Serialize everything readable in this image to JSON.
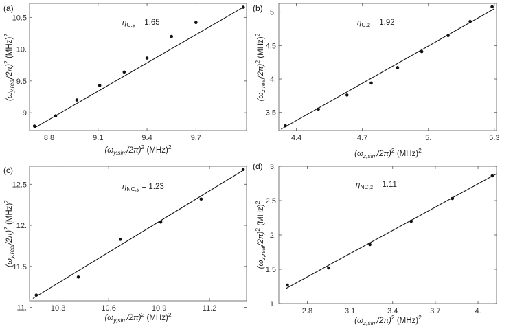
{
  "chart_data": [
    {
      "type": "scatter",
      "panel_label": "(a)",
      "annotation": "η_C,y = 1.65",
      "annotation_main": "η",
      "annotation_sub": "C,y",
      "annotation_value": " = 1.65",
      "xlabel_main": "(ω",
      "xlabel_sub": "y,sim",
      "xlabel_rest": "/2π)",
      "xlabel_sup": "2",
      "xlabel_units": " (MHz)",
      "xlabel_units_sup": "2",
      "ylabel_main": "(ω",
      "ylabel_sub": "y,real",
      "ylabel_rest": "/2π)",
      "ylabel_sup": "2",
      "ylabel_units": " (MHz)",
      "ylabel_units_sup": "2",
      "xlim": [
        8.68,
        10.01
      ],
      "ylim": [
        8.72,
        10.72
      ],
      "xticks": [
        8.8,
        9.1,
        9.4,
        9.7
      ],
      "xtick_labels": [
        "8.8",
        "9.1",
        "9.4",
        "9.7"
      ],
      "yticks": [
        9.0,
        9.5,
        10.0,
        10.5
      ],
      "ytick_labels": [
        "9",
        "9.5",
        "10.",
        "10.5"
      ],
      "points": [
        {
          "x": 8.71,
          "y": 8.79
        },
        {
          "x": 8.84,
          "y": 8.95
        },
        {
          "x": 8.97,
          "y": 9.2
        },
        {
          "x": 9.11,
          "y": 9.43
        },
        {
          "x": 9.26,
          "y": 9.64
        },
        {
          "x": 9.4,
          "y": 9.86
        },
        {
          "x": 9.55,
          "y": 10.2
        },
        {
          "x": 9.7,
          "y": 10.42
        },
        {
          "x": 9.99,
          "y": 10.66
        }
      ],
      "fit": {
        "x": [
          8.71,
          9.99
        ],
        "y": [
          8.76,
          10.66
        ]
      }
    },
    {
      "type": "scatter",
      "panel_label": "(b)",
      "annotation": "η_C,z = 1.92",
      "annotation_main": "η",
      "annotation_sub": "C,z",
      "annotation_value": " = 1.92",
      "xlabel_main": "(ω",
      "xlabel_sub": "z,sim",
      "xlabel_rest": "/2π)",
      "xlabel_sup": "2",
      "xlabel_units": " (MHz)",
      "xlabel_units_sup": "2",
      "ylabel_main": "(ω",
      "ylabel_sub": "z,real",
      "ylabel_rest": "/2π)",
      "ylabel_sup": "2",
      "ylabel_units": " (MHz)",
      "ylabel_units_sup": "2",
      "xlim": [
        4.32,
        5.31
      ],
      "ylim": [
        3.23,
        5.13
      ],
      "xticks": [
        4.4,
        4.7,
        5.0,
        5.3
      ],
      "xtick_labels": [
        "4.4",
        "4.7",
        "5.",
        "5.3"
      ],
      "yticks": [
        3.5,
        4.0,
        4.5,
        5.0
      ],
      "ytick_labels": [
        "3.5",
        "4.",
        "4.5",
        "5."
      ],
      "points": [
        {
          "x": 4.35,
          "y": 3.3
        },
        {
          "x": 4.5,
          "y": 3.55
        },
        {
          "x": 4.63,
          "y": 3.76
        },
        {
          "x": 4.74,
          "y": 3.94
        },
        {
          "x": 4.86,
          "y": 4.17
        },
        {
          "x": 4.97,
          "y": 4.41
        },
        {
          "x": 5.09,
          "y": 4.65
        },
        {
          "x": 5.19,
          "y": 4.86
        },
        {
          "x": 5.29,
          "y": 5.08
        }
      ],
      "fit": {
        "x": [
          4.33,
          5.3
        ],
        "y": [
          3.25,
          5.05
        ]
      }
    },
    {
      "type": "scatter",
      "panel_label": "(c)",
      "annotation": "η_NC,y = 1.23",
      "annotation_main": "η",
      "annotation_sub": "NC,y",
      "annotation_value": " = 1.23",
      "xlabel_main": "(ω",
      "xlabel_sub": "y,sim",
      "xlabel_rest": "/2π)",
      "xlabel_sup": "2",
      "xlabel_units": " (MHz)",
      "xlabel_units_sup": "2",
      "ylabel_main": "(ω",
      "ylabel_sub": "y,real",
      "ylabel_rest": "/2π)",
      "ylabel_sup": "2",
      "ylabel_units": " (MHz)",
      "ylabel_units_sup": "2",
      "xlim": [
        10.13,
        11.42
      ],
      "ylim": [
        11.08,
        12.72
      ],
      "xticks": [
        10.3,
        10.6,
        10.9,
        11.2
      ],
      "xtick_labels": [
        "10.3",
        "10.6",
        "10.9",
        "11.2"
      ],
      "yticks": [
        11.0,
        11.5,
        12.0,
        12.5
      ],
      "ytick_labels": [
        "11.",
        "11.5",
        "12.",
        "12.5"
      ],
      "points": [
        {
          "x": 10.17,
          "y": 11.15
        },
        {
          "x": 10.42,
          "y": 11.37
        },
        {
          "x": 10.67,
          "y": 11.83
        },
        {
          "x": 10.91,
          "y": 12.04
        },
        {
          "x": 11.15,
          "y": 12.32
        },
        {
          "x": 11.4,
          "y": 12.68
        }
      ],
      "fit": {
        "x": [
          10.15,
          11.4
        ],
        "y": [
          11.11,
          12.67
        ]
      }
    },
    {
      "type": "scatter",
      "panel_label": "(d)",
      "annotation": "η_NC,z = 1.11",
      "annotation_main": "η",
      "annotation_sub": "NC,z",
      "annotation_value": " = 1.11",
      "xlabel_main": "(ω",
      "xlabel_sub": "z,sim",
      "xlabel_rest": "/2π)",
      "xlabel_sup": "2",
      "xlabel_units": " (MHz)",
      "xlabel_units_sup": "2",
      "ylabel_main": "(ω",
      "ylabel_sub": "z,real",
      "ylabel_rest": "/2π)",
      "ylabel_sup": "2",
      "ylabel_units": " (MHz)",
      "ylabel_units_sup": "2",
      "xlim": [
        2.6,
        4.13
      ],
      "ylim": [
        1.0,
        3.0
      ],
      "xticks": [
        2.8,
        3.1,
        3.4,
        3.7,
        4.0
      ],
      "xtick_labels": [
        "2.8",
        "3.1",
        "3.4",
        "3.7",
        "4."
      ],
      "yticks": [
        1.0,
        1.5,
        2.0,
        2.5,
        3.0
      ],
      "ytick_labels": [
        "1.",
        "1.5",
        "2.",
        "2.5",
        "3."
      ],
      "points": [
        {
          "x": 2.66,
          "y": 1.27
        },
        {
          "x": 2.95,
          "y": 1.52
        },
        {
          "x": 3.24,
          "y": 1.86
        },
        {
          "x": 3.53,
          "y": 2.2
        },
        {
          "x": 3.82,
          "y": 2.53
        },
        {
          "x": 4.1,
          "y": 2.86
        }
      ],
      "fit": {
        "x": [
          2.65,
          4.13
        ],
        "y": [
          1.22,
          2.89
        ]
      }
    }
  ]
}
